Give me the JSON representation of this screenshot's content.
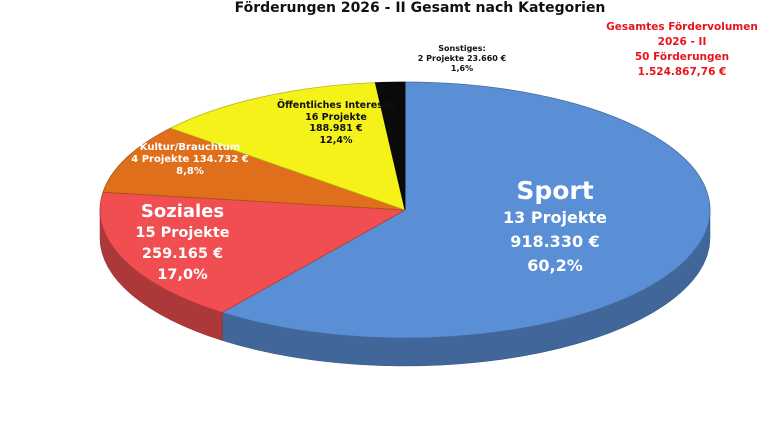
{
  "chart_data": {
    "type": "pie",
    "title": "Förderungen 2026 - II Gesamt nach Kategorien",
    "slices": [
      {
        "name": "Sport",
        "projects": "13 Projekte",
        "amount": "918.330 €",
        "percent_label": "60,2%",
        "value": 918330,
        "color": "#5a8fd6"
      },
      {
        "name": "Soziales",
        "projects": "15 Projekte",
        "amount": "259.165 €",
        "percent_label": "17,0%",
        "value": 259165,
        "color": "#f04e50"
      },
      {
        "name": "Kultur/Brauchtum",
        "projects": "4 Projekte",
        "amount": "134.732 €",
        "percent_label": "8,8%",
        "value": 134732,
        "color": "#e06f1b"
      },
      {
        "name": "Öffentliches Interesse",
        "projects": "16 Projekte",
        "amount": "188.981 €",
        "percent_label": "12,4%",
        "value": 188981,
        "color": "#f5f21a"
      },
      {
        "name": "Sonstiges:",
        "projects": "2 Projekte",
        "amount": "23.660 €",
        "percent_label": "1,6%",
        "value": 23660,
        "color": "#0a0a0a"
      }
    ]
  },
  "summary": {
    "line1": "Gesamtes Fördervolumen",
    "line2": "2026 - II",
    "line3": "50 Förderungen",
    "line4": "1.524.867,76 €"
  },
  "labels": {
    "kultur_line2": "4 Projekte 134.732 €",
    "sonst_line2": "2 Projekte 23.660 €"
  }
}
